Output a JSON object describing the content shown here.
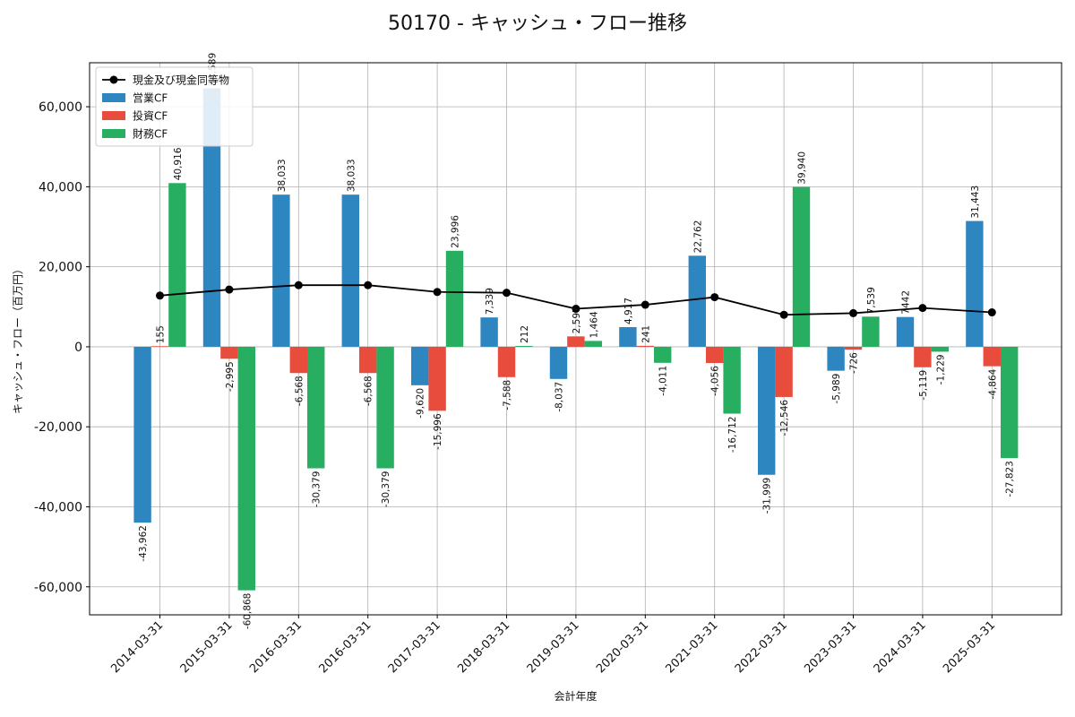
{
  "chart_data": {
    "type": "bar",
    "title": "50170 - キャッシュ・フロー推移",
    "xlabel": "会計年度",
    "ylabel": "キャッシュ・フロー（百万円）",
    "ylim": [
      -67000,
      71000
    ],
    "yticks": [
      -60000,
      -40000,
      -20000,
      0,
      20000,
      40000,
      60000
    ],
    "ytick_labels": [
      "-60,000",
      "-40,000",
      "-20,000",
      "0",
      "20,000",
      "40,000",
      "60,000"
    ],
    "grid": true,
    "legend_position": "top-left",
    "categories": [
      "2014-03-31",
      "2015-03-31",
      "2016-03-31",
      "2016-03-31",
      "2017-03-31",
      "2018-03-31",
      "2019-03-31",
      "2020-03-31",
      "2021-03-31",
      "2022-03-31",
      "2023-03-31",
      "2024-03-31",
      "2025-03-31"
    ],
    "series": [
      {
        "name": "営業CF",
        "color": "#2e86c1",
        "values": [
          -43962,
          64589,
          38033,
          38033,
          -9620,
          7339,
          -8037,
          4917,
          22762,
          -31999,
          -5989,
          7442,
          31443
        ],
        "labels": [
          "-43,962",
          "64,589",
          "38,033",
          "38,033",
          "-9,620",
          "7,339",
          "-8,037",
          "4,917",
          "22,762",
          "-31,999",
          "-5,989",
          "7442",
          "31,443"
        ]
      },
      {
        "name": "投資CF",
        "color": "#e74c3c",
        "values": [
          155,
          -2995,
          -6568,
          -6568,
          -15996,
          -7588,
          2597,
          241,
          -4056,
          -12546,
          -726,
          -5119,
          -4864
        ],
        "labels": [
          "155",
          "-2,995",
          "-6,568",
          "-6,568",
          "-15,996",
          "-7,588",
          "2,597",
          "241",
          "-4,056",
          "-12,546",
          "-726",
          "-5,119",
          "-4,864"
        ]
      },
      {
        "name": "財務CF",
        "color": "#27ae60",
        "values": [
          40916,
          -60868,
          -30379,
          -30379,
          23996,
          212,
          1464,
          -4011,
          -16712,
          39940,
          7539,
          -1229,
          -27823
        ],
        "labels": [
          "40,916",
          "-60,868",
          "-30,379",
          "-30,379",
          "23,996",
          "212",
          "1,464",
          "-4,011",
          "-16,712",
          "39,940",
          "7,539",
          "-1,229",
          "-27,823"
        ]
      }
    ],
    "line": {
      "name": "現金及び現金同等物",
      "color": "#000000",
      "values": [
        12800,
        14300,
        15400,
        15400,
        13700,
        13500,
        9500,
        10500,
        12400,
        8000,
        8400,
        9700,
        8600
      ]
    }
  }
}
